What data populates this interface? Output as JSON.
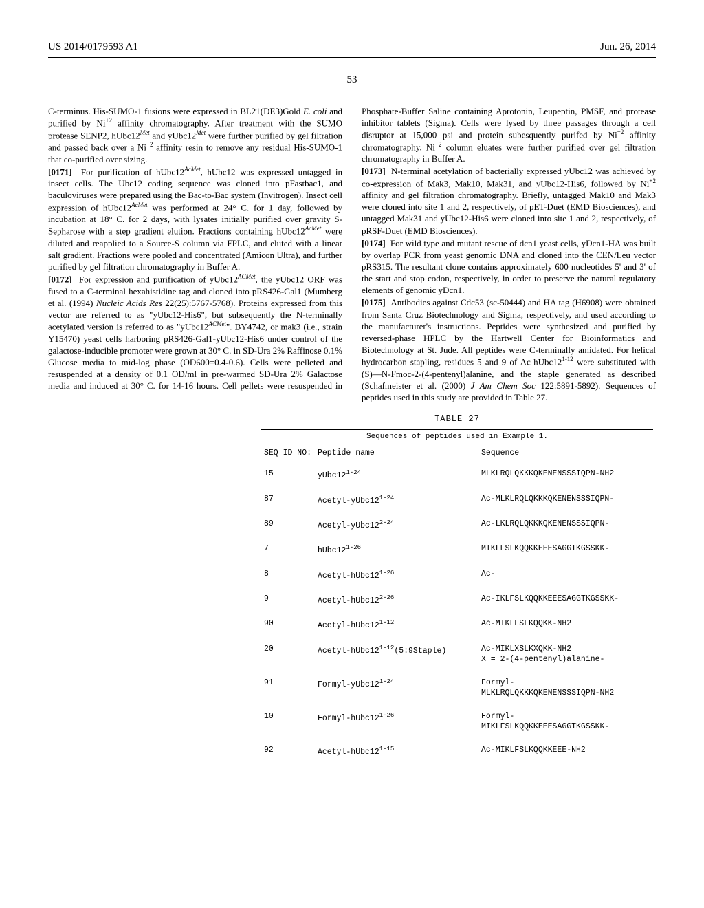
{
  "header": {
    "left": "US 2014/0179593 A1",
    "right": "Jun. 26, 2014"
  },
  "page_number": "53",
  "paragraphs": [
    {
      "type": "plain",
      "html": "C-terminus. His-SUMO-1 fusions were expressed in BL21(DE3)Gold <span class='italic'>E. coli</span> and purified by Ni<sup>+2</sup> affinity chromatography. After treatment with the SUMO protease SENP2, hUbc12<sup><span class='italic'>Met</span></sup> and yUbc12<sup><span class='italic'>Met</span></sup> were further purified by gel filtration and passed back over a Ni<sup>+2</sup> affinity resin to remove any residual His-SUMO-1 that co-purified over sizing."
    },
    {
      "type": "num",
      "num": "[0171]",
      "html": "For purification of hUbc12<sup><span class='italic'>AcMet</span></sup>, hUbc12 was expressed untagged in insect cells. The Ubc12 coding sequence was cloned into pFastbac1, and baculoviruses were prepared using the Bac-to-Bac system (Invitrogen). Insect cell expression of hUbc12<sup><span class='italic'>AcMet</span></sup> was performed at 24° C. for 1 day, followed by incubation at 18° C. for 2 days, with lysates initially purified over gravity S-Sepharose with a step gradient elution. Fractions containing hUbc12<sup><span class='italic'>AcMet</span></sup> were diluted and reapplied to a Source-S column via FPLC, and eluted with a linear salt gradient. Fractions were pooled and concentrated (Amicon Ultra), and further purified by gel filtration chromatography in Buffer A."
    },
    {
      "type": "num",
      "num": "[0172]",
      "html": "For expression and purification of yUbc12<sup><span class='italic'>ACMet</span></sup>, the yUbc12 ORF was fused to a C-terminal hexahistidine tag and cloned into pRS426-Gal1 (Mumberg et al. (1994) <span class='italic'>Nucleic Acids Res</span> 22(25):5767-5768). Proteins expressed from this vector are referred to as \"yUbc12-His6\", but subsequently the N-terminally acetylated version is referred to as \"yUbc12<sup><span class='italic'>ACMet</span></sup>\". BY4742, or mak3 (i.e., strain Y15470) yeast cells harboring pRS426-Gal1-yUbc12-His6 under control of the galactose-inducible promoter were grown at 30° C. in SD-Ura 2% Raffinose 0.1% Glucose media to mid-log phase (OD600=0.4-0.6). Cells were pelleted and resuspended at a density of 0.1 OD/ml in pre-warmed SD-Ura 2% Galactose media and induced at 30° C. for 14-16 hours. Cell pellets were resuspended in Phosphate-Buffer Saline containing Aprotonin, Leupeptin, PMSF, and protease inhibitor tablets (Sigma). Cells were lysed by three passages through a cell disruptor at 15,000 psi and protein subesquently purifed by Ni<sup>+2</sup> affinity chromatography. Ni<sup>+2</sup> column eluates were further purified over gel filtration chromatography in Buffer A."
    },
    {
      "type": "num",
      "num": "[0173]",
      "html": "N-terminal acetylation of bacterially expressed yUbc12 was achieved by co-expression of Mak3, Mak10, Mak31, and yUbc12-His6, followed by Ni<sup>+2</sup> affinity and gel filtration chromatography. Briefly, untagged Mak10 and Mak3 were cloned into site 1 and 2, respectively, of pET-Duet (EMD Biosciences), and untagged Mak31 and yUbc12-His6 were cloned into site 1 and 2, respectively, of pRSF-Duet (EMD Biosciences)."
    },
    {
      "type": "num",
      "num": "[0174]",
      "html": "For wild type and mutant rescue of dcn1 yeast cells, yDcn1-HA was built by overlap PCR from yeast genomic DNA and cloned into the CEN/Leu vector pRS315. The resultant clone contains approximately 600 nucleotides 5' and 3' of the start and stop codon, respectively, in order to preserve the natural regulatory elements of genomic yDcn1."
    },
    {
      "type": "num",
      "num": "[0175]",
      "html": "Antibodies against Cdc53 (sc-50444) and HA tag (H6908) were obtained from Santa Cruz Biotechnology and Sigma, respectively, and used according to the manufacturer's instructions. Peptides were synthesized and purified by reversed-phase HPLC by the Hartwell Center for Bioinformatics and Biotechnology at St. Jude. All peptides were C-terminally amidated. For helical hydrocarbon stapling, residues 5 and 9 of Ac-hUbc12<sup>1-12</sup> were substituted with (S)—N-Fmoc-2-(4-pentenyl)alanine, and the staple generated as described (Schafmeister et al. (2000) <span class='italic'>J Am Chem Soc</span> 122:5891-5892). Sequences of peptides used in this study are provided in Table 27."
    }
  ],
  "table": {
    "label": "TABLE 27",
    "caption": "Sequences of peptides used in Example 1.",
    "columns": [
      "SEQ ID NO:",
      "Peptide name",
      "Sequence"
    ],
    "rows": [
      {
        "seqid": "15",
        "name": "yUbc12<sup>1-24</sup>",
        "seq": "MLKLRQLQKKKQKENENSSSIQPN-NH2"
      },
      {
        "seqid": "87",
        "name": "Acetyl-yUbc12<sup>1-24</sup>",
        "seq": "Ac-MLKLRQLQKKKQKENENSSSIQPN-"
      },
      {
        "seqid": "89",
        "name": "Acetyl-yUbc12<sup>2-24</sup>",
        "seq": "Ac-LKLRQLQKKKQKENENSSSIQPN-"
      },
      {
        "seqid": "7",
        "name": "hUbc12<sup>1-26</sup>",
        "seq": "MIKLFSLKQQKKEEESAGGTKGSSKK-"
      },
      {
        "seqid": "8",
        "name": "Acetyl-hUbc12<sup>1-26</sup>",
        "seq": "Ac-"
      },
      {
        "seqid": "9",
        "name": "Acetyl-hUbc12<sup>2-26</sup>",
        "seq": "Ac-IKLFSLKQQKKEEESAGGTKGSSKK-"
      },
      {
        "seqid": "90",
        "name": "Acetyl-hUbc12<sup>1-12</sup>",
        "seq": "Ac-MIKLFSLKQQKK-NH2"
      },
      {
        "seqid": "20",
        "name": "Acetyl-hUbc12<sup>1-12</sup>(5:9Staple)",
        "seq": "Ac-MIKLXSLKXQKK-NH2<br>X = 2-(4-pentenyl)alanine-"
      },
      {
        "seqid": "91",
        "name": "Formyl-yUbc12<sup>1-24</sup>",
        "seq": "Formyl-<br>MLKLRQLQKKKQKENENSSSIQPN-NH2"
      },
      {
        "seqid": "10",
        "name": "Formyl-hUbc12<sup>1-26</sup>",
        "seq": "Formyl-<br>MIKLFSLKQQKKEEESAGGTKGSSKK-"
      },
      {
        "seqid": "92",
        "name": "Acetyl-hUbc12<sup>1-15</sup>",
        "seq": "Ac-MIKLFSLKQQKKEEE-NH2"
      }
    ]
  }
}
